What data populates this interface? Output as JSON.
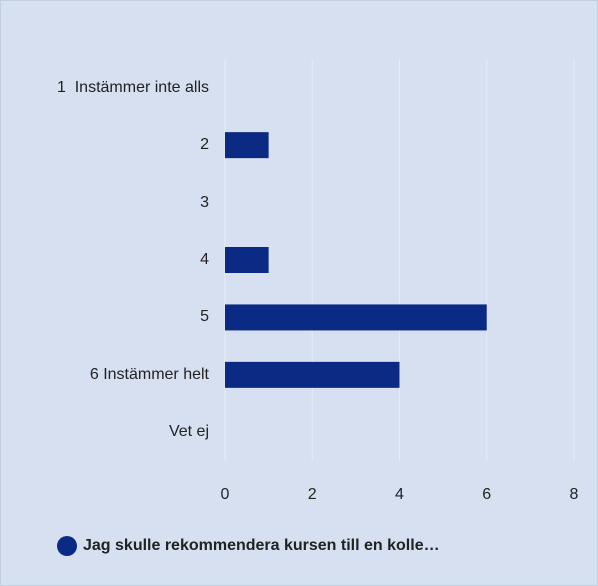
{
  "chart_data": {
    "type": "bar",
    "orientation": "horizontal",
    "categories": [
      "1  Instämmer inte alls",
      "2",
      "3",
      "4",
      "5",
      "6 Instämmer helt",
      "Vet ej"
    ],
    "series": [
      {
        "name": "Jag skulle rekommendera kursen till en kolle…",
        "color": "#0b2a84",
        "values": [
          0,
          1,
          0,
          1,
          6,
          4,
          0
        ]
      }
    ],
    "xlim": [
      0,
      8
    ],
    "xticks": [
      0,
      2,
      4,
      6,
      8
    ],
    "grid": true,
    "legend": "bottom"
  }
}
